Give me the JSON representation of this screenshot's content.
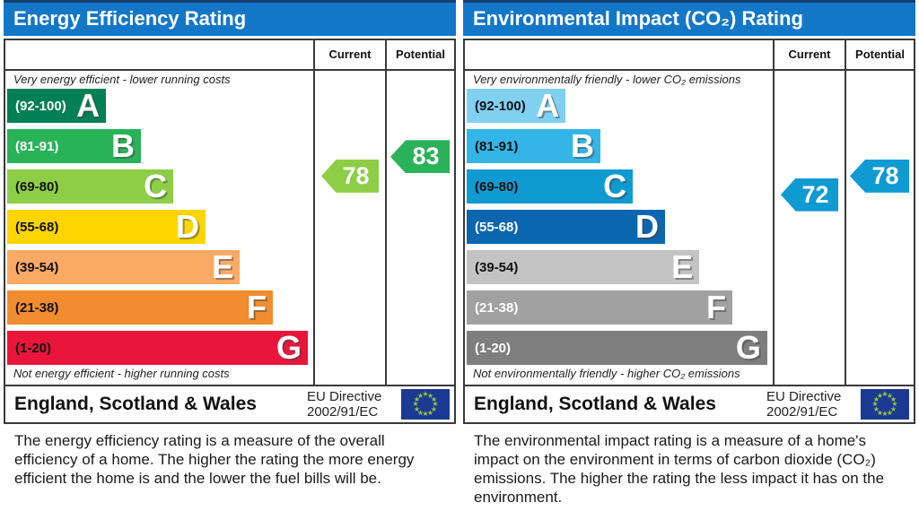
{
  "page": {
    "background": "#ffffff",
    "header_color": "#1377c8",
    "header_top_edge": "#16406e",
    "border_color": "#3a3a3a"
  },
  "eu_flag": {
    "bg": "#1a3a94",
    "star": "#9ec43d"
  },
  "panels": [
    {
      "title": "Energy Efficiency Rating",
      "columns": {
        "current": "Current",
        "potential": "Potential"
      },
      "top_note": "Very energy efficient - lower running costs",
      "bottom_note": "Not energy efficient - higher running costs",
      "bands": [
        {
          "letter": "A",
          "range_label": "(92-100)",
          "lo": 92,
          "hi": 100,
          "color": "#008054",
          "text": "#ffffff",
          "width_pct": 32.3
        },
        {
          "letter": "B",
          "range_label": "(81-91)",
          "lo": 81,
          "hi": 91,
          "color": "#2ab259",
          "text": "#ffffff",
          "width_pct": 43.7
        },
        {
          "letter": "C",
          "range_label": "(69-80)",
          "lo": 69,
          "hi": 80,
          "color": "#8dce46",
          "text": "#111111",
          "width_pct": 54.3
        },
        {
          "letter": "D",
          "range_label": "(55-68)",
          "lo": 55,
          "hi": 68,
          "color": "#ffd500",
          "text": "#111111",
          "width_pct": 64.8
        },
        {
          "letter": "E",
          "range_label": "(39-54)",
          "lo": 39,
          "hi": 54,
          "color": "#fbaa65",
          "text": "#111111",
          "width_pct": 76.0
        },
        {
          "letter": "F",
          "range_label": "(21-38)",
          "lo": 21,
          "hi": 38,
          "color": "#f18c2f",
          "text": "#111111",
          "width_pct": 86.8
        },
        {
          "letter": "G",
          "range_label": "(1-20)",
          "lo": 1,
          "hi": 20,
          "color": "#e9153b",
          "text": "#111111",
          "width_pct": 98.2
        }
      ],
      "arrows": {
        "current": {
          "value": 78,
          "color": "#8dce46"
        },
        "potential": {
          "value": 83,
          "color": "#2ab259"
        }
      },
      "footer": {
        "region": "England, Scotland & Wales",
        "directive_line1": "EU Directive",
        "directive_line2": "2002/91/EC"
      },
      "description": "The energy efficiency rating is a measure of the overall efficiency of a home. The higher the rating the more energy efficient the home is and the lower the fuel bills will be."
    },
    {
      "title": "Environmental Impact (CO₂) Rating",
      "columns": {
        "current": "Current",
        "potential": "Potential"
      },
      "top_note": "Very environmentally friendly - lower CO₂ emissions",
      "bottom_note": "Not environmentally friendly - higher CO₂ emissions",
      "bands": [
        {
          "letter": "A",
          "range_label": "(92-100)",
          "lo": 92,
          "hi": 100,
          "color": "#7fd0f1",
          "text": "#111111",
          "width_pct": 32.3
        },
        {
          "letter": "B",
          "range_label": "(81-91)",
          "lo": 81,
          "hi": 91,
          "color": "#34b5e8",
          "text": "#111111",
          "width_pct": 43.7
        },
        {
          "letter": "C",
          "range_label": "(69-80)",
          "lo": 69,
          "hi": 80,
          "color": "#0f9ad2",
          "text": "#111111",
          "width_pct": 54.3
        },
        {
          "letter": "D",
          "range_label": "(55-68)",
          "lo": 55,
          "hi": 68,
          "color": "#0b66b0",
          "text": "#ffffff",
          "width_pct": 64.8
        },
        {
          "letter": "E",
          "range_label": "(39-54)",
          "lo": 39,
          "hi": 54,
          "color": "#c3c3c3",
          "text": "#111111",
          "width_pct": 76.0
        },
        {
          "letter": "F",
          "range_label": "(21-38)",
          "lo": 21,
          "hi": 38,
          "color": "#a1a1a1",
          "text": "#ffffff",
          "width_pct": 86.8
        },
        {
          "letter": "G",
          "range_label": "(1-20)",
          "lo": 1,
          "hi": 20,
          "color": "#7e7e7e",
          "text": "#ffffff",
          "width_pct": 98.2
        }
      ],
      "arrows": {
        "current": {
          "value": 72,
          "color": "#0f9ad2"
        },
        "potential": {
          "value": 78,
          "color": "#0f9ad2"
        }
      },
      "footer": {
        "region": "England, Scotland & Wales",
        "directive_line1": "EU Directive",
        "directive_line2": "2002/91/EC"
      },
      "description": "The environmental impact rating is a measure of a home's impact on the environment in terms of carbon dioxide (CO₂) emissions. The higher the rating the less impact it has on the environment."
    }
  ],
  "chart_data": [
    {
      "type": "bar",
      "title": "Energy Efficiency Rating",
      "subtitle_top": "Very energy efficient - lower running costs",
      "subtitle_bottom": "Not energy efficient - higher running costs",
      "categories": [
        "A (92-100)",
        "B (81-91)",
        "C (69-80)",
        "D (55-68)",
        "E (39-54)",
        "F (21-38)",
        "G (1-20)"
      ],
      "values": [
        32.3,
        43.7,
        54.3,
        64.8,
        76.0,
        86.8,
        98.2
      ],
      "value_unit": "percent of plot width (fixed EPC band lengths)",
      "series": [
        {
          "name": "Current",
          "value": 78,
          "band": "C"
        },
        {
          "name": "Potential",
          "value": 83,
          "band": "B"
        }
      ],
      "xlabel": "",
      "ylabel": "",
      "legend_position": "right columns",
      "footer": "England, Scotland & Wales — EU Directive 2002/91/EC"
    },
    {
      "type": "bar",
      "title": "Environmental Impact (CO₂) Rating",
      "subtitle_top": "Very environmentally friendly - lower CO₂ emissions",
      "subtitle_bottom": "Not environmentally friendly - higher CO₂ emissions",
      "categories": [
        "A (92-100)",
        "B (81-91)",
        "C (69-80)",
        "D (55-68)",
        "E (39-54)",
        "F (21-38)",
        "G (1-20)"
      ],
      "values": [
        32.3,
        43.7,
        54.3,
        64.8,
        76.0,
        86.8,
        98.2
      ],
      "value_unit": "percent of plot width (fixed EPC band lengths)",
      "series": [
        {
          "name": "Current",
          "value": 72,
          "band": "C"
        },
        {
          "name": "Potential",
          "value": 78,
          "band": "C"
        }
      ],
      "xlabel": "",
      "ylabel": "",
      "legend_position": "right columns",
      "footer": "England, Scotland & Wales — EU Directive 2002/91/EC"
    }
  ]
}
